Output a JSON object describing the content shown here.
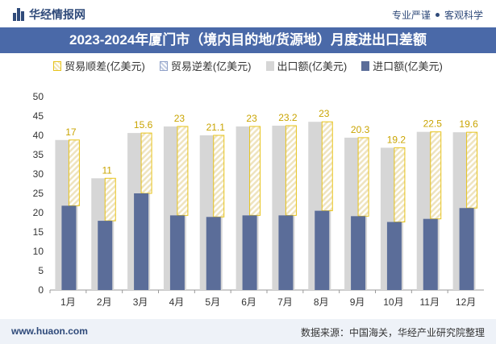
{
  "header": {
    "brand": "华经情报网",
    "tag1": "专业严谨",
    "tag2": "客观科学",
    "logo_icon": "bar-logo-icon"
  },
  "footer": {
    "website": "www.huaon.com",
    "source": "数据来源：中国海关，华经产业研究院整理"
  },
  "colors": {
    "export": "#d6d6d6",
    "import": "#5b6d99",
    "surplus_border": "#e8c41a",
    "header_bg": "#4a69a8"
  },
  "chart_data": {
    "type": "bar",
    "title": "2023-2024年厦门市（境内目的地/货源地）月度进出口差额",
    "categories": [
      "1月",
      "2月",
      "3月",
      "4月",
      "5月",
      "6月",
      "7月",
      "8月",
      "9月",
      "10月",
      "11月",
      "12月"
    ],
    "series": [
      {
        "name": "贸易顺差(亿美元)",
        "values": [
          17,
          11,
          15.6,
          23,
          21.1,
          23,
          23.2,
          23,
          20.3,
          19.2,
          22.5,
          19.6
        ]
      },
      {
        "name": "贸易逆差(亿美元)",
        "values": [
          0,
          0,
          0,
          0,
          0,
          0,
          0,
          0,
          0,
          0,
          0,
          0
        ]
      },
      {
        "name": "出口额(亿美元)",
        "values": [
          38.8,
          28.9,
          40.6,
          42.3,
          40.0,
          42.3,
          42.5,
          43.5,
          39.4,
          36.8,
          40.9,
          40.8
        ]
      },
      {
        "name": "进口额(亿美元)",
        "values": [
          21.8,
          17.9,
          25.0,
          19.3,
          18.9,
          19.3,
          19.3,
          20.5,
          19.1,
          17.6,
          18.4,
          21.2
        ]
      }
    ],
    "data_labels": [
      "17",
      "11",
      "15.6",
      "23",
      "21.1",
      "23",
      "23.2",
      "23",
      "20.3",
      "19.2",
      "22.5",
      "19.6"
    ],
    "yticks": [
      "0",
      "5",
      "10",
      "15",
      "20",
      "25",
      "30",
      "35",
      "40",
      "45",
      "50"
    ],
    "ylim": [
      0,
      50
    ],
    "grid": false,
    "legend_position": "top"
  }
}
